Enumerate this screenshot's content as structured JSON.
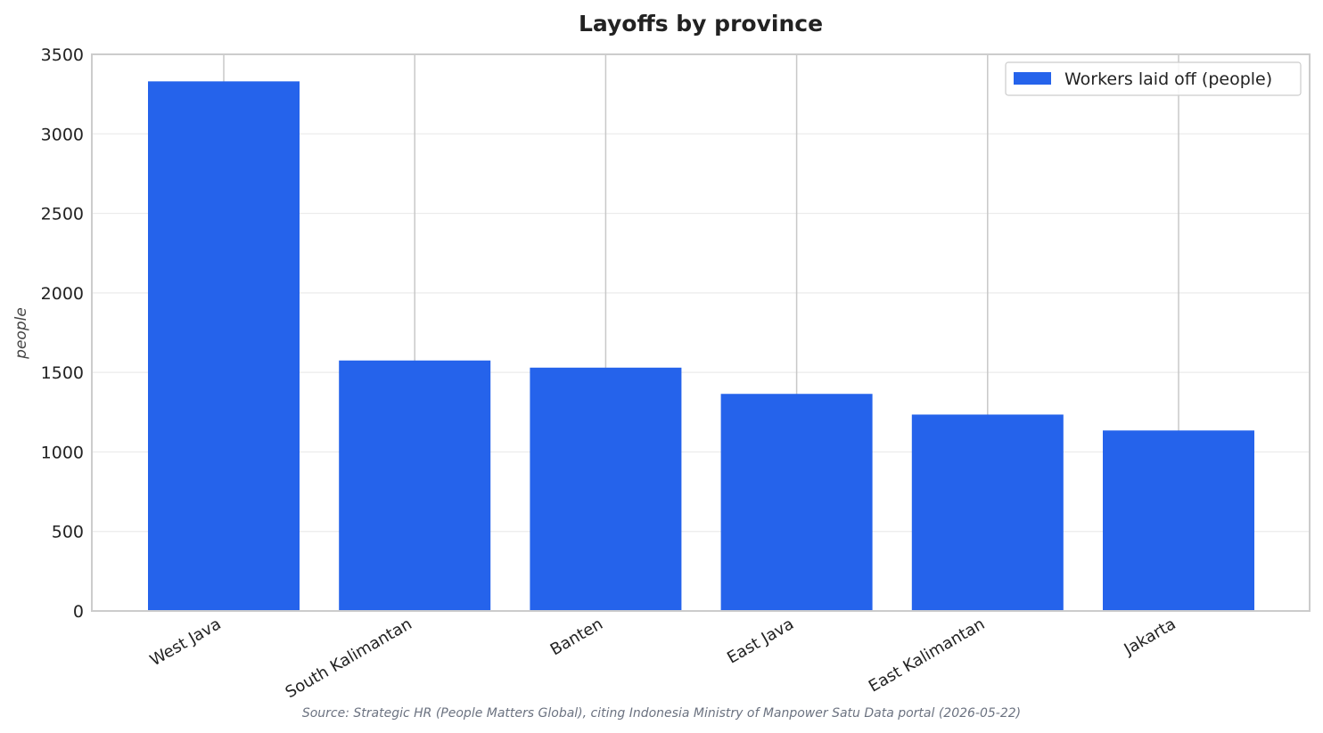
{
  "chart_data": {
    "type": "bar",
    "title": "Layoffs by province",
    "xlabel": "",
    "ylabel": "people",
    "categories": [
      "West Java",
      "South Kalimantan",
      "Banten",
      "East Java",
      "East Kalimantan",
      "Jakarta"
    ],
    "series": [
      {
        "name": "Workers laid off (people)",
        "values": [
          3330,
          1575,
          1530,
          1365,
          1235,
          1135
        ],
        "color": "#2563eb"
      }
    ],
    "ylim": [
      0,
      3500
    ],
    "yticks": [
      0,
      500,
      1000,
      1500,
      2000,
      2500,
      3000,
      3500
    ],
    "grid": true,
    "legend_position": "top-right",
    "source": "Source: Strategic HR (People Matters Global), citing Indonesia Ministry of Manpower Satu Data portal (2026-05-22)"
  }
}
